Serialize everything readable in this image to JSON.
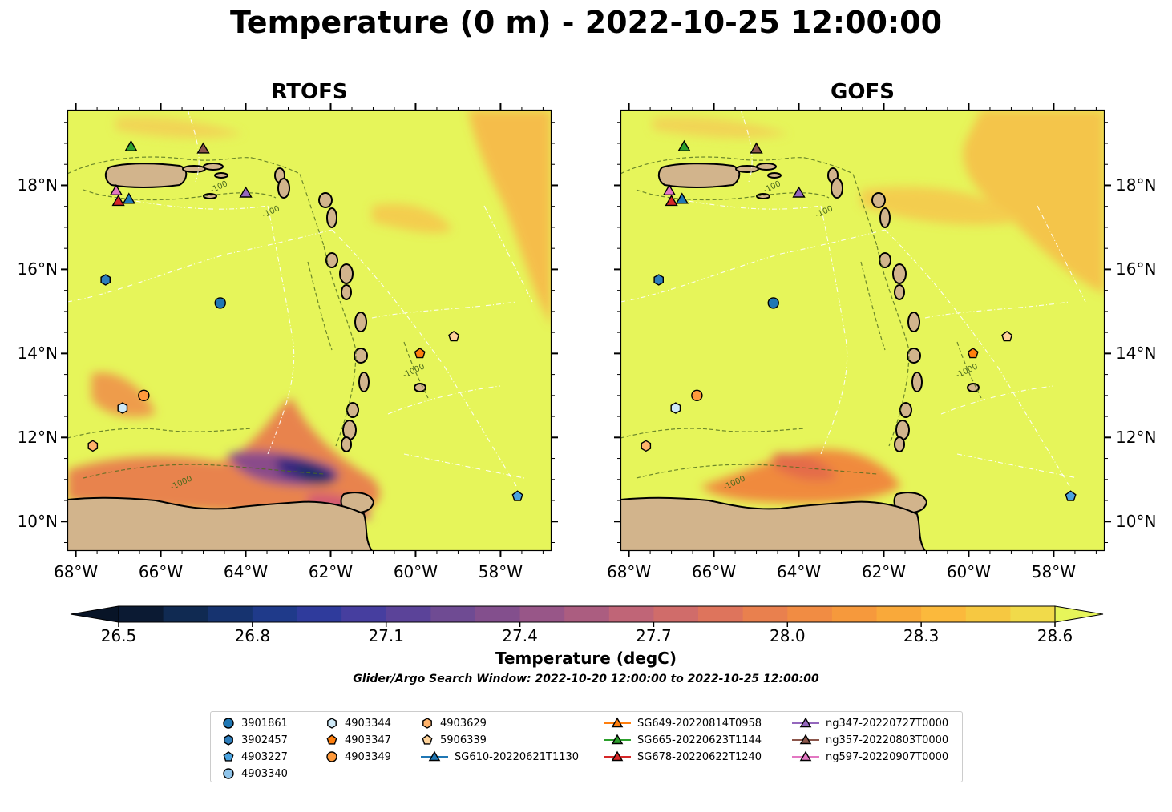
{
  "title": "Temperature (0 m) - 2022-10-25 12:00:00",
  "panels": [
    {
      "title": "RTOFS"
    },
    {
      "title": "GOFS"
    }
  ],
  "axes": {
    "lon_labels": [
      "68°W",
      "66°W",
      "64°W",
      "62°W",
      "60°W",
      "58°W"
    ],
    "lat_labels": [
      "18°N",
      "16°N",
      "14°N",
      "12°N",
      "10°N"
    ],
    "lon_range": [
      -68.2,
      -56.8
    ],
    "lat_range": [
      9.3,
      19.8
    ]
  },
  "colorbar": {
    "label": "Temperature (degC)",
    "ticks": [
      "26.5",
      "26.8",
      "27.1",
      "27.4",
      "27.7",
      "28.0",
      "28.3",
      "28.6"
    ],
    "range": [
      26.5,
      28.6
    ],
    "extend": "both"
  },
  "search_window": "Glider/Argo Search Window: 2022-10-20 12:00:00 to 2022-10-25 12:00:00",
  "contour_labels": [
    "-100",
    "-1000"
  ],
  "colors": {
    "land": "#d2b48c",
    "ocean_warm": "#e6f55a",
    "warmer_patch": "#f7b84a",
    "cool_core": "#1b2f6b"
  },
  "legend": {
    "columns": [
      [
        {
          "label": "3901861",
          "marker": "circle",
          "color": "#1f77b4"
        },
        {
          "label": "3902457",
          "marker": "hexagon",
          "color": "#2e7ebc"
        },
        {
          "label": "4903227",
          "marker": "pentagon",
          "color": "#4aa3df"
        },
        {
          "label": "4903340",
          "marker": "circle",
          "color": "#8fc4ea"
        }
      ],
      [
        {
          "label": "4903344",
          "marker": "hexagon",
          "color": "#cfeaf8"
        },
        {
          "label": "4903347",
          "marker": "pentagon",
          "color": "#ff7f0e"
        },
        {
          "label": "4903349",
          "marker": "circle",
          "color": "#ff9a3c"
        }
      ],
      [
        {
          "label": "4903629",
          "marker": "hexagon",
          "color": "#ffb36b"
        },
        {
          "label": "5906339",
          "marker": "pentagon",
          "color": "#ffd39a"
        },
        {
          "label": "SG610-20220621T1130",
          "marker": "triangle-line",
          "color": "#1f77b4"
        }
      ],
      [
        {
          "label": "SG649-20220814T0958",
          "marker": "triangle-line",
          "color": "#ff7f0e"
        },
        {
          "label": "SG665-20220623T1144",
          "marker": "triangle-line",
          "color": "#2ca02c"
        },
        {
          "label": "SG678-20220622T1240",
          "marker": "triangle-line",
          "color": "#d62728"
        }
      ],
      [
        {
          "label": "ng347-20220727T0000",
          "marker": "triangle-line",
          "color": "#9467bd"
        },
        {
          "label": "ng357-20220803T0000",
          "marker": "triangle-line",
          "color": "#8c564b"
        },
        {
          "label": "ng597-20220907T0000",
          "marker": "triangle-line",
          "color": "#e377c2"
        }
      ]
    ]
  },
  "observations": [
    {
      "id": "3901861",
      "lon": -64.6,
      "lat": 15.2,
      "marker": "circle",
      "color": "#1f77b4"
    },
    {
      "id": "3902457",
      "lon": -67.3,
      "lat": 15.75,
      "marker": "hexagon",
      "color": "#2e7ebc"
    },
    {
      "id": "4903227",
      "lon": -57.6,
      "lat": 10.6,
      "marker": "pentagon",
      "color": "#4aa3df"
    },
    {
      "id": "4903344",
      "lon": -66.9,
      "lat": 12.7,
      "marker": "hexagon",
      "color": "#cfeaf8"
    },
    {
      "id": "4903347",
      "lon": -59.9,
      "lat": 14.0,
      "marker": "pentagon",
      "color": "#ff7f0e"
    },
    {
      "id": "4903349",
      "lon": -66.4,
      "lat": 13.0,
      "marker": "circle",
      "color": "#ff9a3c"
    },
    {
      "id": "4903629",
      "lon": -67.6,
      "lat": 11.8,
      "marker": "hexagon",
      "color": "#ffb36b"
    },
    {
      "id": "5906339",
      "lon": -59.1,
      "lat": 14.4,
      "marker": "pentagon",
      "color": "#ffd39a"
    },
    {
      "id": "SG610-20220621T1130",
      "lon": -66.75,
      "lat": 17.65,
      "marker": "triangle",
      "color": "#1f77b4"
    },
    {
      "id": "SG665-20220623T1144",
      "lon": -66.7,
      "lat": 18.9,
      "marker": "triangle",
      "color": "#2ca02c"
    },
    {
      "id": "SG678-20220622T1240",
      "lon": -67.0,
      "lat": 17.6,
      "marker": "triangle",
      "color": "#d62728"
    },
    {
      "id": "ng347-20220727T0000",
      "lon": -64.0,
      "lat": 17.8,
      "marker": "triangle",
      "color": "#9467bd"
    },
    {
      "id": "ng357-20220803T0000",
      "lon": -65.0,
      "lat": 18.85,
      "marker": "triangle",
      "color": "#8c564b"
    },
    {
      "id": "ng597-20220907T0000",
      "lon": -67.05,
      "lat": 17.85,
      "marker": "triangle",
      "color": "#e377c2"
    }
  ]
}
